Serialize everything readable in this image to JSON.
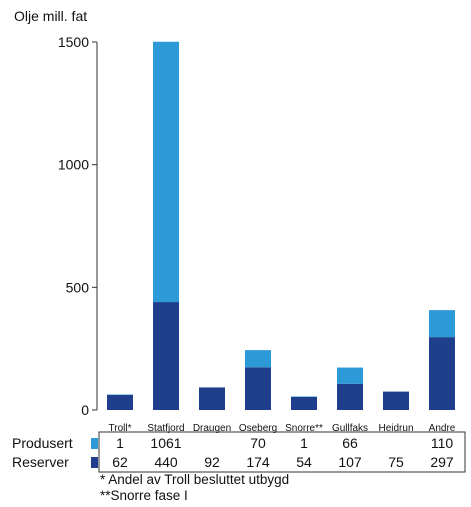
{
  "chart_data": {
    "type": "bar",
    "stacked": true,
    "ylabel": "Olje mill. fat",
    "ylim": [
      0,
      1500
    ],
    "yticks": [
      0,
      500,
      1000,
      1500
    ],
    "categories": [
      "Troll*",
      "Statfjord",
      "Draugen",
      "Oseberg",
      "Snorre**",
      "Gullfaks",
      "Heidrun",
      "Andre"
    ],
    "series": [
      {
        "name": "Reserver",
        "color": "#1f3e8c",
        "values": [
          62,
          440,
          92,
          174,
          54,
          107,
          75,
          297
        ]
      },
      {
        "name": "Produsert",
        "color": "#2d9ad8",
        "values": [
          1,
          1061,
          0,
          70,
          1,
          66,
          0,
          110
        ]
      }
    ],
    "table": {
      "rows": [
        {
          "label": "Produsert",
          "color": "#2d9ad8",
          "cells": [
            "1",
            "1061",
            "",
            "70",
            "1",
            "66",
            "",
            "110"
          ]
        },
        {
          "label": "Reserver",
          "color": "#1f3e8c",
          "cells": [
            "62",
            "440",
            "92",
            "174",
            "54",
            "107",
            "75",
            "297"
          ]
        }
      ]
    },
    "footnotes": [
      "*  Andel av Troll besluttet utbygd",
      "**Snorre fase I"
    ],
    "grid": false
  }
}
